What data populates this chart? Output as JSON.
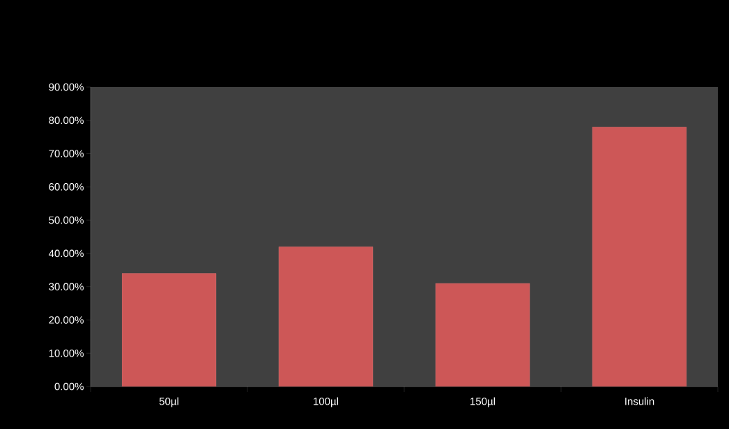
{
  "chart_data": {
    "type": "bar",
    "categories": [
      "50µl",
      "100µl",
      "150µl",
      "Insulin"
    ],
    "values": [
      34,
      42,
      31,
      78
    ],
    "color": "#cd5757",
    "ylim": [
      0,
      90
    ],
    "yticks": [
      {
        "value": 0,
        "label": "0.00%"
      },
      {
        "value": 10,
        "label": "10.00%"
      },
      {
        "value": 20,
        "label": "20.00%"
      },
      {
        "value": 30,
        "label": "30.00%"
      },
      {
        "value": 40,
        "label": "40.00%"
      },
      {
        "value": 50,
        "label": "50.00%"
      },
      {
        "value": 60,
        "label": "60.00%"
      },
      {
        "value": 70,
        "label": "70.00%"
      },
      {
        "value": 80,
        "label": "80.00%"
      },
      {
        "value": 90,
        "label": "90.00%"
      }
    ]
  }
}
